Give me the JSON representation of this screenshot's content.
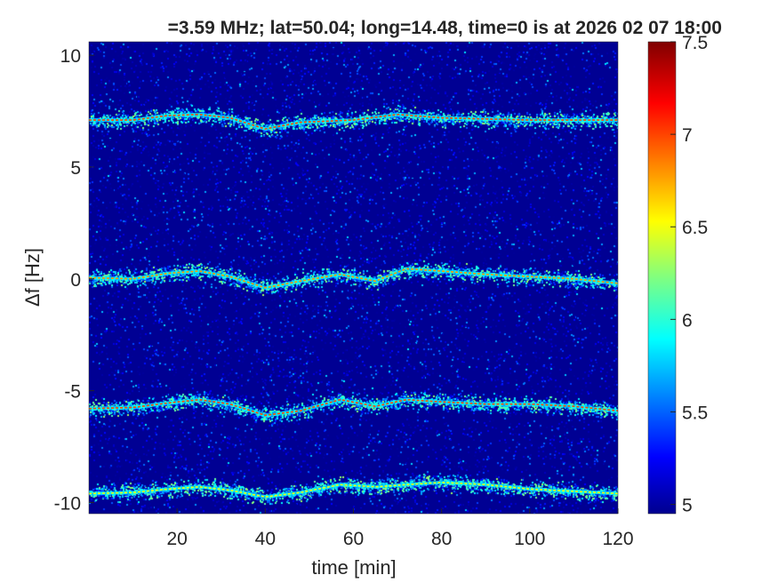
{
  "chart_data": {
    "type": "heatmap",
    "title": "=3.59 MHz;  lat=50.04; long=14.48, time=0 is at 2026 02 07 18:00",
    "xlabel": "time [min]",
    "ylabel": "Δf [Hz]",
    "xlim": [
      0,
      120
    ],
    "ylim": [
      -10.5,
      10.6
    ],
    "xticks": [
      20,
      40,
      60,
      80,
      100,
      120
    ],
    "yticks": [
      -10,
      -5,
      0,
      5,
      10
    ],
    "colormap": "jet",
    "clim": [
      4.95,
      7.5
    ],
    "colorbar_ticks": [
      5,
      5.5,
      6,
      6.5,
      7,
      7.5
    ],
    "background_value": 5.0,
    "grid": false,
    "ridges": [
      {
        "t": [
          0,
          10,
          18,
          25,
          32,
          40,
          48,
          60,
          70,
          80,
          100,
          120
        ],
        "f": [
          7.1,
          7.1,
          7.3,
          7.35,
          7.2,
          6.7,
          7.0,
          7.1,
          7.35,
          7.2,
          7.1,
          7.1
        ],
        "level": 7.0
      },
      {
        "t": [
          0,
          10,
          18,
          25,
          32,
          40,
          48,
          57,
          65,
          72,
          80,
          90,
          100,
          110,
          120
        ],
        "f": [
          0.05,
          0.0,
          0.25,
          0.35,
          0.1,
          -0.4,
          -0.1,
          0.2,
          -0.1,
          0.45,
          0.35,
          0.2,
          0.1,
          0.0,
          -0.2
        ],
        "level": 6.8
      },
      {
        "t": [
          0,
          10,
          18,
          25,
          32,
          40,
          48,
          57,
          65,
          72,
          80,
          90,
          100,
          110,
          120
        ],
        "f": [
          -5.8,
          -5.75,
          -5.55,
          -5.4,
          -5.6,
          -6.1,
          -5.9,
          -5.4,
          -5.7,
          -5.4,
          -5.5,
          -5.6,
          -5.6,
          -5.7,
          -5.9
        ],
        "level": 7.0
      },
      {
        "t": [
          0,
          10,
          18,
          25,
          32,
          40,
          48,
          57,
          65,
          72,
          80,
          90,
          100,
          110,
          120
        ],
        "f": [
          -9.6,
          -9.55,
          -9.4,
          -9.3,
          -9.45,
          -9.75,
          -9.55,
          -9.2,
          -9.3,
          -9.2,
          -9.1,
          -9.2,
          -9.4,
          -9.5,
          -9.6
        ],
        "level": 6.5
      }
    ]
  }
}
